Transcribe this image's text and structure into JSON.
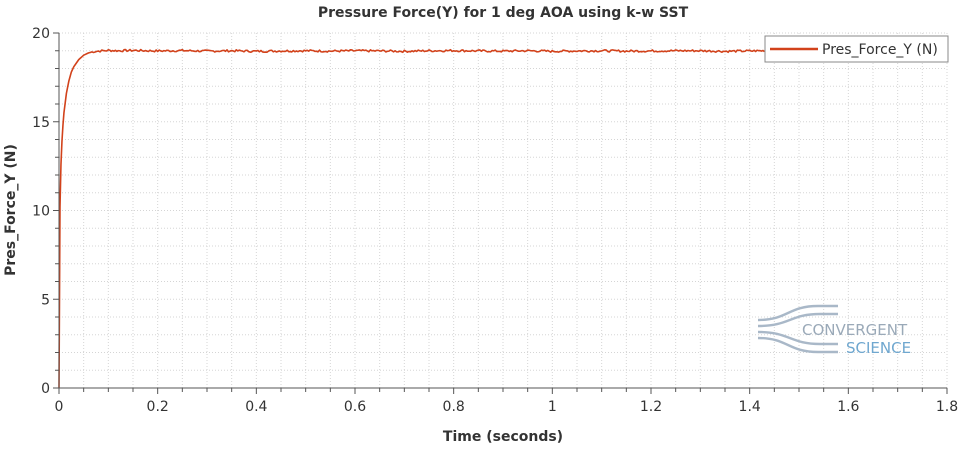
{
  "chart_data": {
    "type": "line",
    "title": "Pressure Force(Y) for 1 deg AOA using k-w SST",
    "xlabel": "Time (seconds)",
    "ylabel": "Pres_Force_Y (N)",
    "xlim": [
      0,
      1.8
    ],
    "ylim": [
      0,
      20
    ],
    "x_ticks": [
      0,
      0.2,
      0.4,
      0.6,
      0.8,
      1,
      1.2,
      1.4,
      1.6,
      1.8
    ],
    "x_tick_labels": [
      "0",
      "0.2",
      "0.4",
      "0.6",
      "0.8",
      "1",
      "1.2",
      "1.4",
      "1.6",
      "1.8"
    ],
    "y_ticks": [
      0,
      5,
      10,
      15,
      20
    ],
    "y_tick_labels": [
      "0",
      "5",
      "10",
      "15",
      "20"
    ],
    "grid": true,
    "legend_position": "top-right",
    "series": [
      {
        "name": "Pres_Force_Y (N)",
        "color": "#d2421b",
        "x": [
          0,
          0.002,
          0.004,
          0.006,
          0.008,
          0.01,
          0.015,
          0.02,
          0.025,
          0.03,
          0.04,
          0.05,
          0.06,
          0.07,
          0.08,
          0.09,
          0.1,
          0.12,
          0.15,
          0.2,
          0.25,
          0.3,
          0.35,
          0.4,
          0.45,
          0.5,
          0.55,
          0.6,
          0.65,
          0.7,
          0.75,
          0.8,
          0.85,
          0.9,
          0.95,
          1.0,
          1.05,
          1.1,
          1.15,
          1.2,
          1.25,
          1.3,
          1.35,
          1.4,
          1.43
        ],
        "values": [
          0,
          10.2,
          12.6,
          13.9,
          14.8,
          15.5,
          16.6,
          17.3,
          17.8,
          18.1,
          18.5,
          18.75,
          18.88,
          18.95,
          18.98,
          19.0,
          19.02,
          19.0,
          19.02,
          18.99,
          19.01,
          18.98,
          19.0,
          18.97,
          18.99,
          19.0,
          18.98,
          19.0,
          18.99,
          18.97,
          19.0,
          19.01,
          18.99,
          18.98,
          19.0,
          18.97,
          18.99,
          19.0,
          18.98,
          18.99,
          19.0,
          19.0,
          18.97,
          18.99,
          19.0
        ]
      }
    ]
  },
  "watermark": {
    "line1": "CONVERGENT",
    "line2": "SCIENCE",
    "colors": {
      "wave": "#a9b8c8",
      "text1": "#9aa9b8",
      "text2": "#6fa7cf"
    }
  },
  "colors": {
    "grid": "#d5d5d5",
    "axis": "#555555",
    "text": "#333333"
  }
}
